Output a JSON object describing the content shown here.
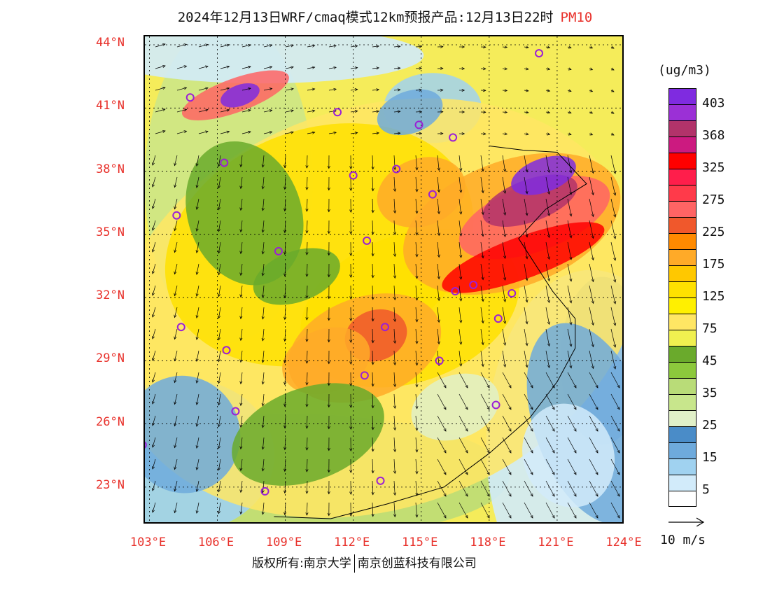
{
  "title": {
    "main": "2024年12月13日WRF/cmaq模式12km预报产品:12月13日22时",
    "pollutant": "PM10"
  },
  "unit": "(ug/m3)",
  "latitude_labels": [
    {
      "text": "44°N",
      "lat": 44
    },
    {
      "text": "41°N",
      "lat": 41
    },
    {
      "text": "38°N",
      "lat": 38
    },
    {
      "text": "35°N",
      "lat": 35
    },
    {
      "text": "32°N",
      "lat": 32
    },
    {
      "text": "29°N",
      "lat": 29
    },
    {
      "text": "26°N",
      "lat": 26
    },
    {
      "text": "23°N",
      "lat": 23
    }
  ],
  "longitude_labels": [
    {
      "text": "103°E",
      "lon": 103
    },
    {
      "text": "106°E",
      "lon": 106
    },
    {
      "text": "109°E",
      "lon": 109
    },
    {
      "text": "112°E",
      "lon": 112
    },
    {
      "text": "115°E",
      "lon": 115
    },
    {
      "text": "118°E",
      "lon": 118
    },
    {
      "text": "121°E",
      "lon": 121
    },
    {
      "text": "124°E",
      "lon": 124
    }
  ],
  "legend": {
    "colors": [
      "#7f2be0",
      "#9b30d6",
      "#b2336a",
      "#cc1a80",
      "#ff0000",
      "#ff1e4b",
      "#ff3a4a",
      "#ff6464",
      "#f0582c",
      "#ff8a00",
      "#ffaa28",
      "#ffc800",
      "#ffe100",
      "#fff000",
      "#ffe664",
      "#f0f050",
      "#6aaa2c",
      "#8cc83c",
      "#b9dc78",
      "#c8e68c",
      "#e1f0c8",
      "#4a8cc8",
      "#6eaadc",
      "#a0d2f0",
      "#d2ebfa",
      "#ffffff"
    ],
    "labels": [
      "403",
      "368",
      "325",
      "275",
      "225",
      "175",
      "125",
      "75",
      "45",
      "35",
      "25",
      "15",
      "5"
    ]
  },
  "wind_key": {
    "label": "10 m/s",
    "speed": 10
  },
  "footer": {
    "left": "版权所有:南京大学",
    "right": "南京创蓝科技有限公司"
  },
  "city_markers": [
    {
      "lon": 120.2,
      "lat": 43.6
    },
    {
      "lon": 104.8,
      "lat": 41.5
    },
    {
      "lon": 111.3,
      "lat": 40.8
    },
    {
      "lon": 114.9,
      "lat": 40.2
    },
    {
      "lon": 116.4,
      "lat": 39.6
    },
    {
      "lon": 106.3,
      "lat": 38.4
    },
    {
      "lon": 112.0,
      "lat": 37.8
    },
    {
      "lon": 113.9,
      "lat": 38.1
    },
    {
      "lon": 115.5,
      "lat": 36.9
    },
    {
      "lon": 104.2,
      "lat": 35.9
    },
    {
      "lon": 112.6,
      "lat": 34.7
    },
    {
      "lon": 108.7,
      "lat": 34.2
    },
    {
      "lon": 116.5,
      "lat": 32.3
    },
    {
      "lon": 117.3,
      "lat": 32.6
    },
    {
      "lon": 119.0,
      "lat": 32.2
    },
    {
      "lon": 118.4,
      "lat": 31.0
    },
    {
      "lon": 104.4,
      "lat": 30.6
    },
    {
      "lon": 113.4,
      "lat": 30.6
    },
    {
      "lon": 106.4,
      "lat": 29.5
    },
    {
      "lon": 115.8,
      "lat": 29.0
    },
    {
      "lon": 112.5,
      "lat": 28.3
    },
    {
      "lon": 106.8,
      "lat": 26.6
    },
    {
      "lon": 118.3,
      "lat": 26.9
    },
    {
      "lon": 102.7,
      "lat": 25.0
    },
    {
      "lon": 113.2,
      "lat": 23.3
    },
    {
      "lon": 108.1,
      "lat": 22.8
    }
  ],
  "pollution_blobs": [
    {
      "lon": 113.0,
      "lat": 31.5,
      "rx": 12.0,
      "ry": 9.5,
      "level": "75"
    },
    {
      "lon": 110.5,
      "lat": 34.5,
      "rx": 7.0,
      "ry": 5.5,
      "level": "125"
    },
    {
      "lon": 114.5,
      "lat": 31.5,
      "rx": 5.0,
      "ry": 3.5,
      "level": "125"
    },
    {
      "lon": 112.5,
      "lat": 29.6,
      "rx": 3.5,
      "ry": 2.4,
      "level": "175"
    },
    {
      "lon": 113.0,
      "lat": 30.2,
      "rx": 1.4,
      "ry": 1.2,
      "level": "225"
    },
    {
      "lon": 110.8,
      "lat": 29.0,
      "rx": 2.0,
      "ry": 1.5,
      "level": "175"
    },
    {
      "lon": 119.0,
      "lat": 35.5,
      "rx": 5.0,
      "ry": 3.0,
      "level": "175"
    },
    {
      "lon": 120.0,
      "lat": 35.8,
      "rx": 3.5,
      "ry": 1.6,
      "level": "275"
    },
    {
      "lon": 119.8,
      "lat": 36.6,
      "rx": 2.2,
      "ry": 1.0,
      "level": "368"
    },
    {
      "lon": 120.4,
      "lat": 37.8,
      "rx": 1.5,
      "ry": 0.8,
      "level": "403"
    },
    {
      "lon": 119.5,
      "lat": 33.9,
      "rx": 3.8,
      "ry": 1.0,
      "level": "325"
    },
    {
      "lon": 115.0,
      "lat": 37.0,
      "rx": 2.0,
      "ry": 1.6,
      "level": "175"
    },
    {
      "lon": 106.8,
      "lat": 41.6,
      "rx": 2.5,
      "ry": 0.8,
      "level": "275"
    },
    {
      "lon": 107.0,
      "lat": 41.6,
      "rx": 0.9,
      "ry": 0.5,
      "level": "403"
    },
    {
      "lon": 107.2,
      "lat": 36.0,
      "rx": 2.5,
      "ry": 3.5,
      "level": "45"
    },
    {
      "lon": 109.5,
      "lat": 33.0,
      "rx": 2.0,
      "ry": 1.2,
      "level": "45"
    },
    {
      "lon": 104.5,
      "lat": 25.5,
      "rx": 2.5,
      "ry": 2.8,
      "level": "15"
    },
    {
      "lon": 116.5,
      "lat": 26.8,
      "rx": 2.0,
      "ry": 1.5,
      "level": "25"
    },
    {
      "lon": 122.5,
      "lat": 26.0,
      "rx": 2.5,
      "ry": 5.0,
      "level": "15"
    },
    {
      "lon": 121.5,
      "lat": 24.5,
      "rx": 2.0,
      "ry": 2.5,
      "level": "5"
    },
    {
      "lon": 114.5,
      "lat": 40.8,
      "rx": 1.5,
      "ry": 1.0,
      "level": "15"
    },
    {
      "lon": 110.0,
      "lat": 25.5,
      "rx": 3.5,
      "ry": 2.2,
      "level": "45"
    }
  ]
}
